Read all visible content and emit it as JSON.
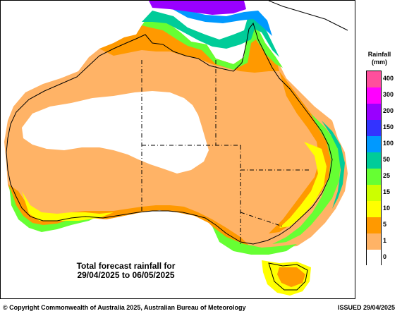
{
  "caption": {
    "line1": "Total forecast rainfall for",
    "line2": "29/04/2025 to 06/05/2025"
  },
  "legend": {
    "title_line1": "Rainfall",
    "title_line2": "(mm)",
    "bins": [
      {
        "label": "400",
        "color": "#ff4f9c"
      },
      {
        "label": "300",
        "color": "#ff00ff"
      },
      {
        "label": "200",
        "color": "#9900ff"
      },
      {
        "label": "150",
        "color": "#3333ff"
      },
      {
        "label": "100",
        "color": "#0099ff"
      },
      {
        "label": "50",
        "color": "#00cc99"
      },
      {
        "label": "25",
        "color": "#66ff33"
      },
      {
        "label": "15",
        "color": "#ccff00"
      },
      {
        "label": "10",
        "color": "#ffff00"
      },
      {
        "label": "5",
        "color": "#ff9900"
      },
      {
        "label": "1",
        "color": "#ffb366"
      },
      {
        "label": "0",
        "color": "#ffffff"
      }
    ]
  },
  "footer": {
    "copyright": "© Copyright Commonwealth of Australia 2025, Australian Bureau of Meteorology",
    "issued": "ISSUED 29/04/2025"
  }
}
